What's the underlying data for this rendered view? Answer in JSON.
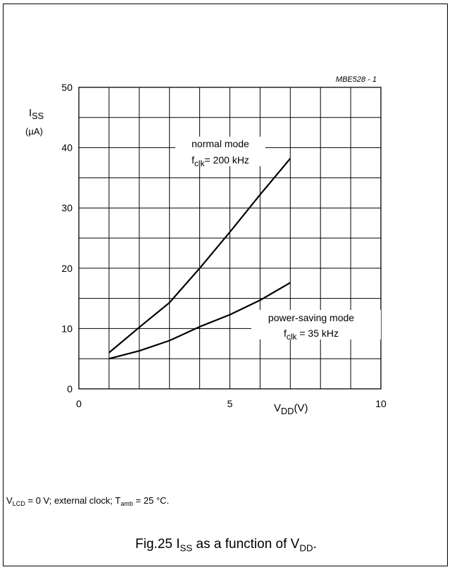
{
  "figure_id": "MBE528 - 1",
  "chart_data": {
    "type": "line",
    "ylabel": {
      "main": "I",
      "sub": "SS",
      "unit": "(µA)"
    },
    "xlabel": {
      "main": "V",
      "sub": "DD",
      "unit": "(V)"
    },
    "xlim": [
      0,
      10
    ],
    "ylim": [
      0,
      50
    ],
    "x_ticks": [
      "0",
      "5",
      "10"
    ],
    "y_ticks": [
      "0",
      "10",
      "20",
      "30",
      "40",
      "50"
    ],
    "grid": true,
    "series": [
      {
        "label_line1": "normal mode",
        "label_main": "f",
        "label_sub": "clk",
        "label_rest": "= 200 kHz",
        "x": [
          1,
          2,
          3,
          4,
          5,
          6,
          7
        ],
        "y": [
          6,
          10.2,
          14.3,
          20,
          26,
          32.2,
          38.2
        ]
      },
      {
        "label_line1": "power-saving mode",
        "label_main": "f",
        "label_sub": "clk",
        "label_rest": " = 35 kHz",
        "x": [
          1,
          2,
          3,
          4,
          5,
          6,
          7
        ],
        "y": [
          5,
          6.3,
          8,
          10.3,
          12.3,
          14.7,
          17.6
        ]
      }
    ]
  },
  "note": {
    "v": "V",
    "v_sub": "LCD",
    "part1": " = 0 V; external clock; T",
    "t_sub": "amb",
    "part2": " = 25 °C."
  },
  "caption": {
    "prefix": "Fig.25  I",
    "i_sub": "SS",
    "middle": " as a function of V",
    "v_sub": "DD",
    "suffix": "."
  }
}
